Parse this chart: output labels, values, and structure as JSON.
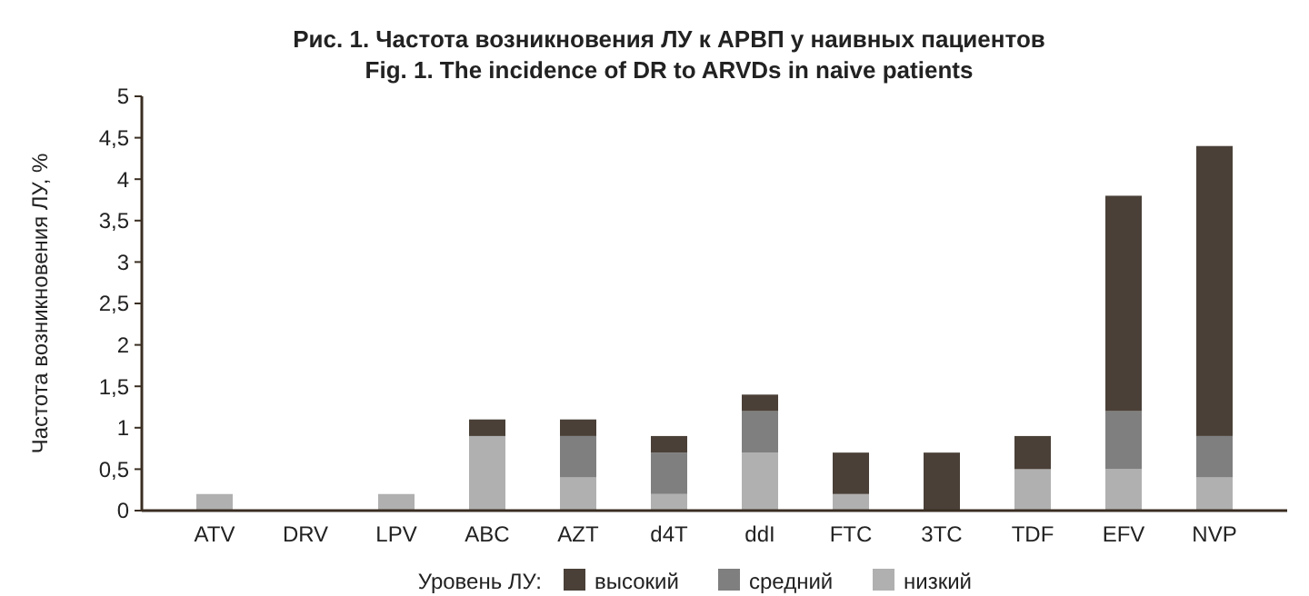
{
  "chart_data": {
    "type": "bar",
    "stacked": true,
    "title": "Рис. 1. Частота возникновения ЛУ к АРВП у наивных пациентов",
    "subtitle": "Fig. 1. The incidence of DR to ARVDs in naive patients",
    "ylabel": "Частота возникновения ЛУ, %",
    "legend_title": "Уровень ЛУ:",
    "legend": "bottom",
    "categories": [
      "ATV",
      "DRV",
      "LPV",
      "ABC",
      "AZT",
      "d4T",
      "ddI",
      "FTC",
      "3TC",
      "TDF",
      "EFV",
      "NVP"
    ],
    "series": [
      {
        "name": "низкий",
        "color": "#b0b0b0",
        "values": [
          0.2,
          0,
          0.2,
          0.9,
          0.4,
          0.2,
          0.7,
          0.2,
          0,
          0.5,
          0.5,
          0.4
        ]
      },
      {
        "name": "средний",
        "color": "#7f7f7f",
        "values": [
          0,
          0,
          0,
          0,
          0.5,
          0.5,
          0.5,
          0,
          0,
          0,
          0.7,
          0.5
        ]
      },
      {
        "name": "высокий",
        "color": "#4a4038",
        "values": [
          0,
          0,
          0,
          0.2,
          0.2,
          0.2,
          0.2,
          0.5,
          0.7,
          0.4,
          2.6,
          3.5
        ]
      }
    ],
    "ylim": [
      0,
      5
    ],
    "yticks": [
      0,
      {
        "value": 0.5,
        "label": "0,5"
      },
      1,
      {
        "value": 1.5,
        "label": "1,5"
      },
      2,
      {
        "value": 2.5,
        "label": "2,5"
      },
      3,
      {
        "value": 3.5,
        "label": "3,5"
      },
      4,
      {
        "value": 4.5,
        "label": "4,5"
      },
      5
    ]
  }
}
